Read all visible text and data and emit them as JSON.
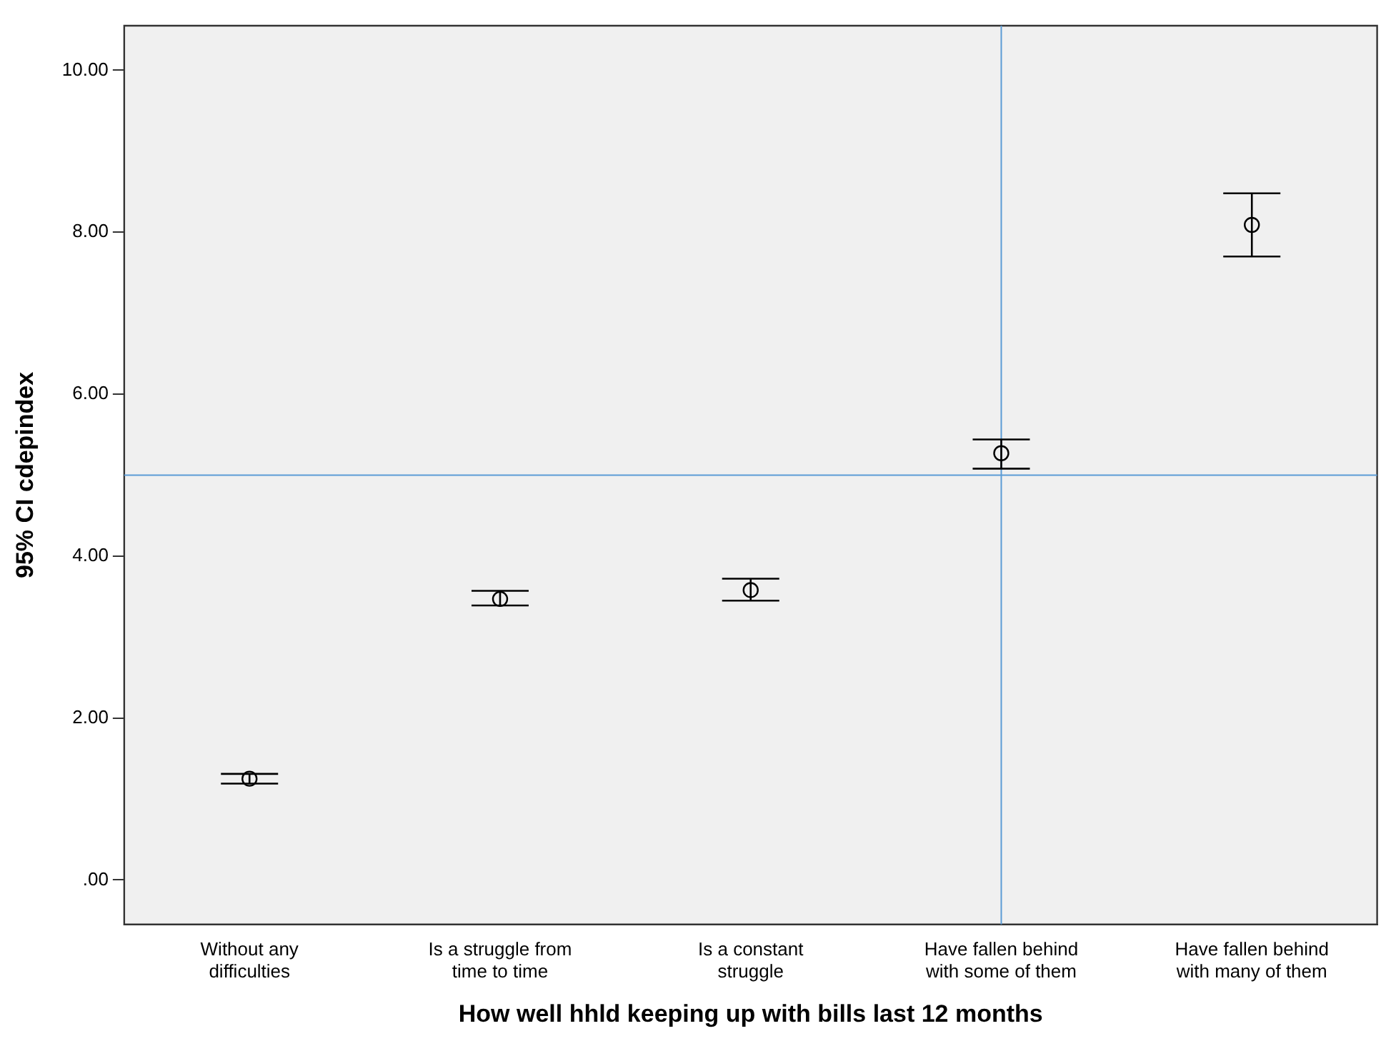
{
  "chart_data": {
    "type": "scatter",
    "xlabel": "How well hhld keeping up with bills last 12 months",
    "ylabel": "95% CI cdepindex",
    "categories": [
      "Without any difficulties",
      "Is a struggle from time to time",
      "Is a constant struggle",
      "Have fallen behind with some of them",
      "Have fallen behind with many of them"
    ],
    "series": [
      {
        "color": "#000000",
        "values": [
          1.25,
          3.47,
          3.58,
          5.27,
          8.09
        ],
        "errors": [
          [
            1.19,
            1.31
          ],
          [
            3.39,
            3.57
          ],
          [
            3.45,
            3.72
          ],
          [
            5.08,
            5.44
          ],
          [
            7.7,
            8.48
          ]
        ]
      }
    ],
    "ylim": [
      -0.55,
      10.55
    ],
    "yticks": [
      {
        "value": 0,
        "label": ".00"
      },
      {
        "value": 2,
        "label": "2.00"
      },
      {
        "value": 4,
        "label": "4.00"
      },
      {
        "value": 6,
        "label": "6.00"
      },
      {
        "value": 8,
        "label": "8.00"
      },
      {
        "value": 10,
        "label": "10.00"
      }
    ],
    "ref_lines": [
      {
        "axis": "y",
        "value": 5.0,
        "color": "#5b9bd5"
      },
      {
        "axis": "x",
        "value": "Have fallen behind with some of them",
        "color": "#5b9bd5"
      }
    ],
    "marker": "circle",
    "grid": false,
    "legend": false
  }
}
